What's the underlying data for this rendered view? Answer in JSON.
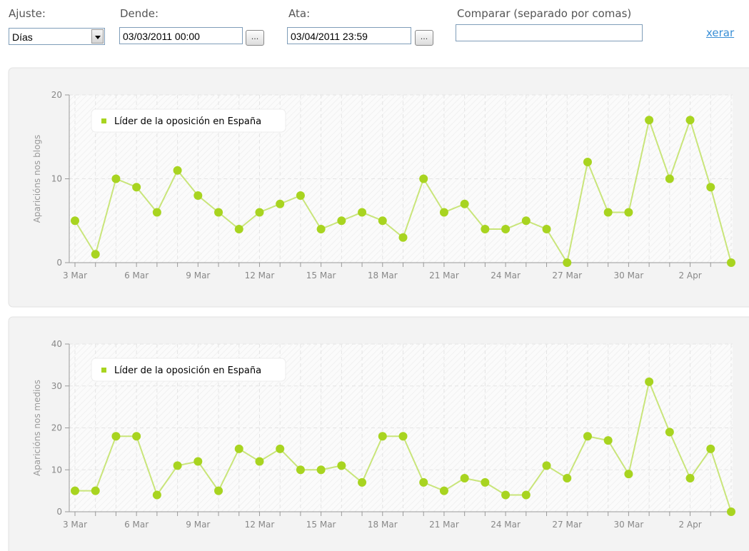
{
  "form": {
    "ajuste_label": "Ajuste:",
    "ajuste_value": "Días",
    "dende_label": "Dende:",
    "dende_value": "03/03/2011 00:00",
    "ata_label": "Ata:",
    "ata_value": "03/04/2011 23:59",
    "button": "...",
    "comparar_label": "Comparar (separado por comas)",
    "xerar": "xerar"
  },
  "chart_data": [
    {
      "type": "line",
      "y_label": "Aparicións nos blogs",
      "categories": [
        "3 Mar",
        null,
        null,
        "6 Mar",
        null,
        null,
        "9 Mar",
        null,
        null,
        "12 Mar",
        null,
        null,
        "15 Mar",
        null,
        null,
        "18 Mar",
        null,
        null,
        "21 Mar",
        null,
        null,
        "24 Mar",
        null,
        null,
        "27 Mar",
        null,
        null,
        "30 Mar",
        null,
        null,
        "2 Apr",
        null,
        null
      ],
      "series": [
        {
          "name": "Líder de la oposición en España",
          "color": "#a8d420",
          "values": [
            5,
            1,
            10,
            9,
            6,
            11,
            8,
            6,
            4,
            6,
            7,
            8,
            4,
            5,
            6,
            5,
            3,
            10,
            6,
            7,
            4,
            4,
            5,
            4,
            0,
            12,
            6,
            6,
            17,
            10,
            17,
            9,
            0
          ]
        }
      ],
      "ylim": [
        0,
        20
      ],
      "yticks": [
        0,
        10,
        20
      ],
      "grid": true
    },
    {
      "type": "line",
      "y_label": "Aparicións nos medios",
      "categories": [
        "3 Mar",
        null,
        null,
        "6 Mar",
        null,
        null,
        "9 Mar",
        null,
        null,
        "12 Mar",
        null,
        null,
        "15 Mar",
        null,
        null,
        "18 Mar",
        null,
        null,
        "21 Mar",
        null,
        null,
        "24 Mar",
        null,
        null,
        "27 Mar",
        null,
        null,
        "30 Mar",
        null,
        null,
        "2 Apr",
        null,
        null
      ],
      "series": [
        {
          "name": "Líder de la oposición en España",
          "color": "#a8d420",
          "values": [
            5,
            5,
            18,
            18,
            4,
            11,
            12,
            5,
            15,
            12,
            15,
            10,
            10,
            11,
            7,
            18,
            18,
            7,
            5,
            8,
            7,
            4,
            4,
            11,
            8,
            18,
            17,
            9,
            31,
            19,
            8,
            15,
            0
          ]
        }
      ],
      "ylim": [
        0,
        40
      ],
      "yticks": [
        0,
        10,
        20,
        30,
        40
      ],
      "grid": true
    }
  ]
}
